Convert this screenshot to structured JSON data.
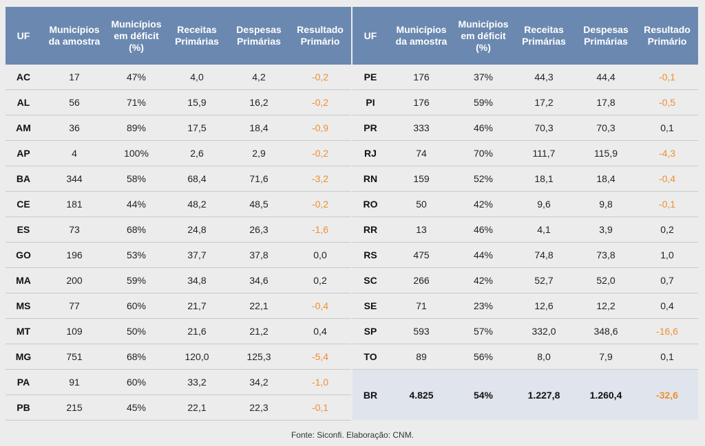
{
  "headers": {
    "uf": "UF",
    "municipios": "Municípios\nda amostra",
    "deficit": "Municípios\nem déficit\n(%)",
    "receitas": "Receitas\nPrimárias",
    "despesas": "Despesas\nPrimárias",
    "resultado": "Resultado\nPrimário"
  },
  "left_rows": [
    {
      "uf": "AC",
      "municipios": "17",
      "deficit": "47%",
      "receitas": "4,0",
      "despesas": "4,2",
      "resultado": "-0,2",
      "negative": true
    },
    {
      "uf": "AL",
      "municipios": "56",
      "deficit": "71%",
      "receitas": "15,9",
      "despesas": "16,2",
      "resultado": "-0,2",
      "negative": true
    },
    {
      "uf": "AM",
      "municipios": "36",
      "deficit": "89%",
      "receitas": "17,5",
      "despesas": "18,4",
      "resultado": "-0,9",
      "negative": true
    },
    {
      "uf": "AP",
      "municipios": "4",
      "deficit": "100%",
      "receitas": "2,6",
      "despesas": "2,9",
      "resultado": "-0,2",
      "negative": true
    },
    {
      "uf": "BA",
      "municipios": "344",
      "deficit": "58%",
      "receitas": "68,4",
      "despesas": "71,6",
      "resultado": "-3,2",
      "negative": true
    },
    {
      "uf": "CE",
      "municipios": "181",
      "deficit": "44%",
      "receitas": "48,2",
      "despesas": "48,5",
      "resultado": "-0,2",
      "negative": true
    },
    {
      "uf": "ES",
      "municipios": "73",
      "deficit": "68%",
      "receitas": "24,8",
      "despesas": "26,3",
      "resultado": "-1,6",
      "negative": true
    },
    {
      "uf": "GO",
      "municipios": "196",
      "deficit": "53%",
      "receitas": "37,7",
      "despesas": "37,8",
      "resultado": "0,0",
      "negative": false
    },
    {
      "uf": "MA",
      "municipios": "200",
      "deficit": "59%",
      "receitas": "34,8",
      "despesas": "34,6",
      "resultado": "0,2",
      "negative": false
    },
    {
      "uf": "MS",
      "municipios": "77",
      "deficit": "60%",
      "receitas": "21,7",
      "despesas": "22,1",
      "resultado": "-0,4",
      "negative": true
    },
    {
      "uf": "MT",
      "municipios": "109",
      "deficit": "50%",
      "receitas": "21,6",
      "despesas": "21,2",
      "resultado": "0,4",
      "negative": false
    },
    {
      "uf": "MG",
      "municipios": "751",
      "deficit": "68%",
      "receitas": "120,0",
      "despesas": "125,3",
      "resultado": "-5,4",
      "negative": true
    },
    {
      "uf": "PA",
      "municipios": "91",
      "deficit": "60%",
      "receitas": "33,2",
      "despesas": "34,2",
      "resultado": "-1,0",
      "negative": true
    },
    {
      "uf": "PB",
      "municipios": "215",
      "deficit": "45%",
      "receitas": "22,1",
      "despesas": "22,3",
      "resultado": "-0,1",
      "negative": true
    }
  ],
  "right_rows": [
    {
      "uf": "PE",
      "municipios": "176",
      "deficit": "37%",
      "receitas": "44,3",
      "despesas": "44,4",
      "resultado": "-0,1",
      "negative": true
    },
    {
      "uf": "PI",
      "municipios": "176",
      "deficit": "59%",
      "receitas": "17,2",
      "despesas": "17,8",
      "resultado": "-0,5",
      "negative": true
    },
    {
      "uf": "PR",
      "municipios": "333",
      "deficit": "46%",
      "receitas": "70,3",
      "despesas": "70,3",
      "resultado": "0,1",
      "negative": false
    },
    {
      "uf": "RJ",
      "municipios": "74",
      "deficit": "70%",
      "receitas": "111,7",
      "despesas": "115,9",
      "resultado": "-4,3",
      "negative": true
    },
    {
      "uf": "RN",
      "municipios": "159",
      "deficit": "52%",
      "receitas": "18,1",
      "despesas": "18,4",
      "resultado": "-0,4",
      "negative": true
    },
    {
      "uf": "RO",
      "municipios": "50",
      "deficit": "42%",
      "receitas": "9,6",
      "despesas": "9,8",
      "resultado": "-0,1",
      "negative": true
    },
    {
      "uf": "RR",
      "municipios": "13",
      "deficit": "46%",
      "receitas": "4,1",
      "despesas": "3,9",
      "resultado": "0,2",
      "negative": false
    },
    {
      "uf": "RS",
      "municipios": "475",
      "deficit": "44%",
      "receitas": "74,8",
      "despesas": "73,8",
      "resultado": "1,0",
      "negative": false
    },
    {
      "uf": "SC",
      "municipios": "266",
      "deficit": "42%",
      "receitas": "52,7",
      "despesas": "52,0",
      "resultado": "0,7",
      "negative": false
    },
    {
      "uf": "SE",
      "municipios": "71",
      "deficit": "23%",
      "receitas": "12,6",
      "despesas": "12,2",
      "resultado": "0,4",
      "negative": false
    },
    {
      "uf": "SP",
      "municipios": "593",
      "deficit": "57%",
      "receitas": "332,0",
      "despesas": "348,6",
      "resultado": "-16,6",
      "negative": true
    },
    {
      "uf": "TO",
      "municipios": "89",
      "deficit": "56%",
      "receitas": "8,0",
      "despesas": "7,9",
      "resultado": "0,1",
      "negative": false
    }
  ],
  "total": {
    "uf": "BR",
    "municipios": "4.825",
    "deficit": "54%",
    "receitas": "1.227,8",
    "despesas": "1.260,4",
    "resultado": "-32,6",
    "negative": true
  },
  "source": "Fonte: Siconfi. Elaboração: CNM.",
  "colors": {
    "header_bg": "#6b88b0",
    "negative": "#ee8f31",
    "total_bg": "#e0e4ec"
  }
}
